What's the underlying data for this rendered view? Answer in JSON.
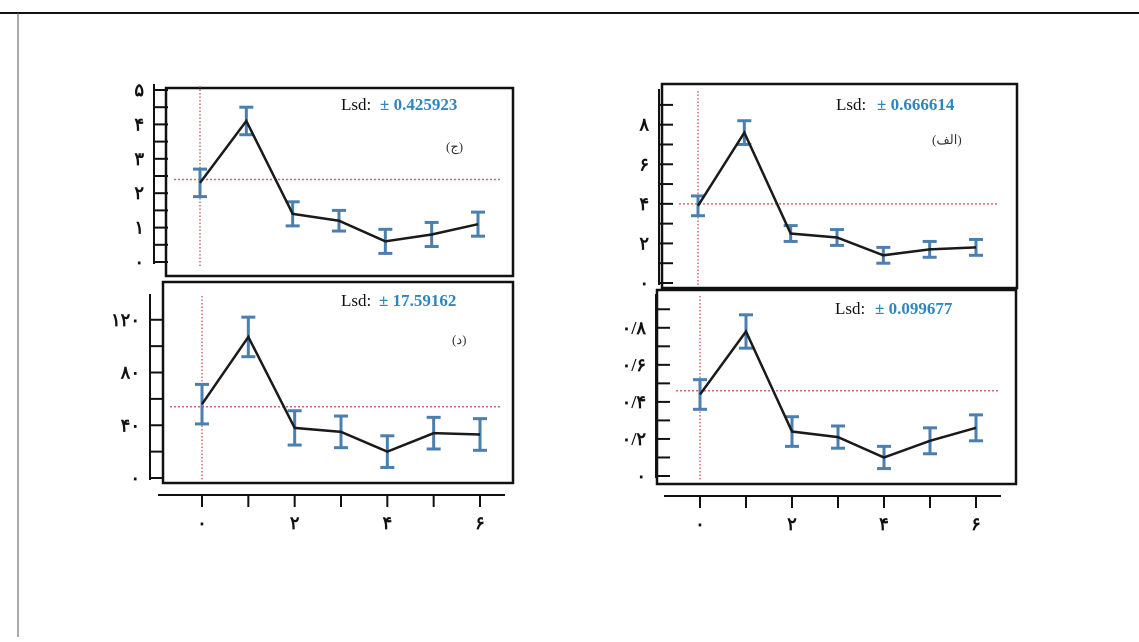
{
  "colors": {
    "line": "#1a1a1a",
    "errorbar": "#4a7fb0",
    "meanline": "#d06a6a",
    "lsd_value": "#2e86c1",
    "frame": "#111111"
  },
  "chart_data": [
    {
      "type": "line",
      "panel_label": "(الف)",
      "lsd_label": "Lsd:",
      "lsd_value": "± 0.666614",
      "x": [
        0,
        1,
        2,
        3,
        4,
        5,
        6
      ],
      "x_tick_labels": [
        "۰",
        "",
        "۲",
        "",
        "۴",
        "",
        "۶"
      ],
      "y": [
        3.9,
        7.6,
        2.5,
        2.3,
        1.4,
        1.7,
        1.8
      ],
      "y_err": [
        0.5,
        0.6,
        0.4,
        0.4,
        0.4,
        0.4,
        0.4
      ],
      "y_tick_labels": [
        "۰",
        "۲",
        "۴",
        "۶",
        "۸"
      ],
      "y_ticks": [
        0,
        2,
        4,
        6,
        8
      ],
      "ylim": [
        0,
        9.5
      ],
      "mean_line": 4.0
    },
    {
      "type": "line",
      "panel_label": "(ج)",
      "lsd_label": "Lsd:",
      "lsd_value": "± 0.425923",
      "x": [
        0,
        1,
        2,
        3,
        4,
        5,
        6
      ],
      "x_tick_labels": [
        "۰",
        "",
        "۲",
        "",
        "۴",
        "",
        "۶"
      ],
      "y": [
        2.3,
        4.1,
        1.4,
        1.2,
        0.6,
        0.8,
        1.1
      ],
      "y_err": [
        0.4,
        0.4,
        0.35,
        0.3,
        0.35,
        0.35,
        0.35
      ],
      "y_tick_labels": [
        "۰",
        "۱",
        "۲",
        "۳",
        "۴",
        "۵"
      ],
      "y_ticks": [
        0,
        1,
        2,
        3,
        4,
        5
      ],
      "ylim": [
        0,
        5
      ],
      "mean_line": 2.4
    },
    {
      "type": "line",
      "panel_label": "",
      "lsd_label": "Lsd:",
      "lsd_value": "± 0.099677",
      "x": [
        0,
        1,
        2,
        3,
        4,
        5,
        6
      ],
      "x_tick_labels": [
        "۰",
        "",
        "۲",
        "",
        "۴",
        "",
        "۶"
      ],
      "y": [
        0.44,
        0.78,
        0.24,
        0.21,
        0.1,
        0.19,
        0.26
      ],
      "y_err": [
        0.08,
        0.09,
        0.08,
        0.06,
        0.06,
        0.07,
        0.07
      ],
      "y_tick_labels": [
        "۰",
        "۰/۲",
        "۰/۴",
        "۰/۶",
        "۰/۸"
      ],
      "y_ticks": [
        0,
        0.2,
        0.4,
        0.6,
        0.8
      ],
      "ylim": [
        0,
        0.95
      ],
      "mean_line": 0.46
    },
    {
      "type": "line",
      "panel_label": "(د)",
      "lsd_label": "Lsd:",
      "lsd_value": "± 17.59162",
      "x": [
        0,
        1,
        2,
        3,
        4,
        5,
        6
      ],
      "x_tick_labels": [
        "۰",
        "",
        "۲",
        "",
        "۴",
        "",
        "۶"
      ],
      "y": [
        56,
        107,
        38,
        35,
        20,
        34,
        33
      ],
      "y_err": [
        15,
        15,
        13,
        12,
        12,
        12,
        12
      ],
      "y_tick_labels": [
        "۰",
        "۴۰",
        "۸۰",
        "۱۲۰"
      ],
      "y_ticks": [
        0,
        40,
        80,
        120
      ],
      "ylim": [
        0,
        135
      ],
      "mean_line": 54
    }
  ]
}
